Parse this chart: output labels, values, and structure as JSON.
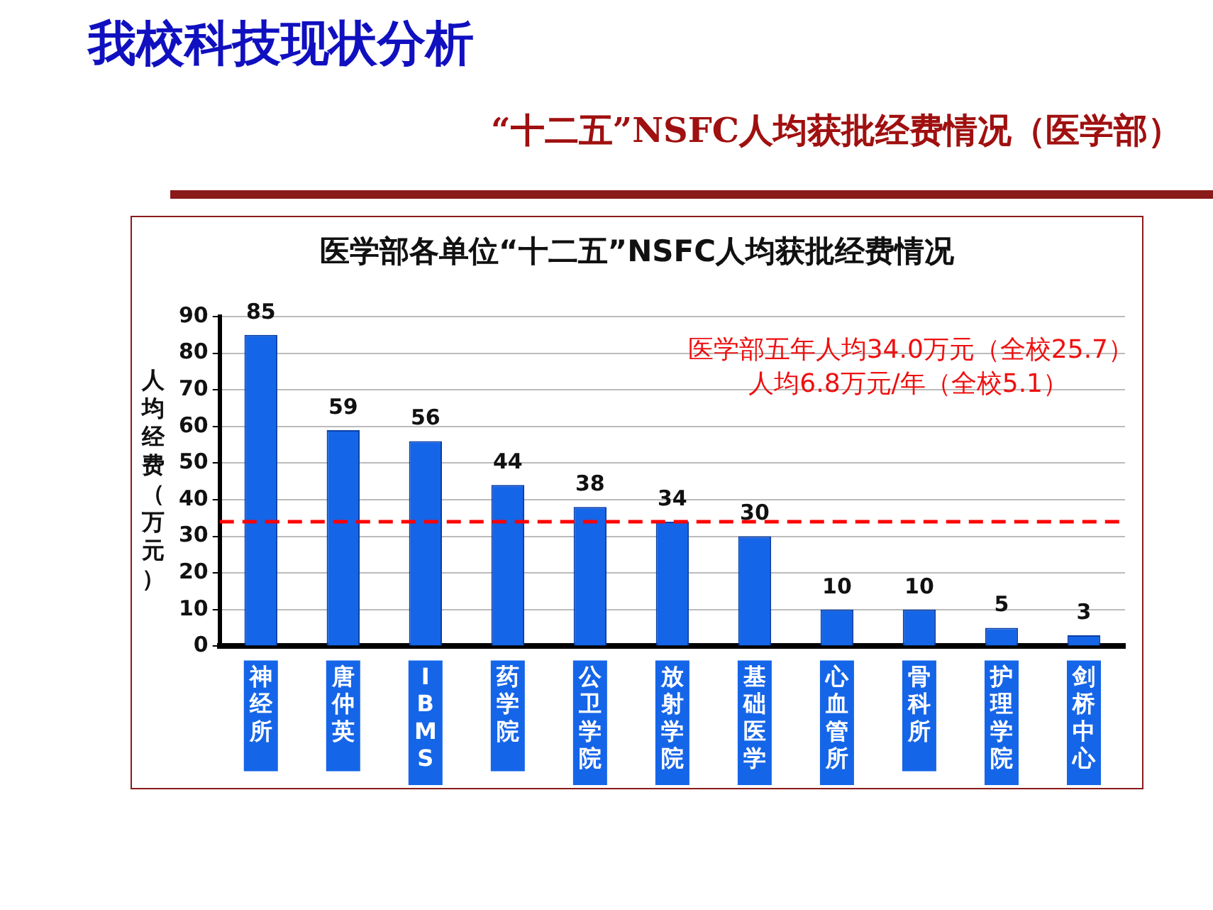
{
  "chart_data": {
    "type": "bar",
    "title": "医学部各单位“十二五”NSFC人均获批经费情况",
    "subtitle": "“十二五”NSFC人均获批经费情况（医学部）",
    "ylabel": "人均经费（万元）",
    "annotations": [
      "我校科技现状分析",
      "医学部五年人均34.0万元（全校25.7）",
      "人均6.8万元/年（全校5.1）"
    ],
    "categories": [
      "神经所",
      "唐仲英",
      "IBMS",
      "药学院",
      "公卫学院",
      "放射学院",
      "基础医学",
      "心血管所",
      "骨科所",
      "护理学院",
      "剑桥中心"
    ],
    "values": [
      85,
      59,
      56,
      44,
      38,
      34,
      30,
      10,
      10,
      5,
      3
    ],
    "color": "#1565e8",
    "ylim": [
      0,
      90
    ],
    "yticks": [
      0,
      10,
      20,
      30,
      40,
      50,
      60,
      70,
      80,
      90
    ],
    "ref_lines": [
      {
        "axis": "y",
        "value": 34,
        "color": "#ff0000",
        "line_style": "dashed"
      }
    ],
    "data_labels": true,
    "grid": "y",
    "legend": false
  }
}
